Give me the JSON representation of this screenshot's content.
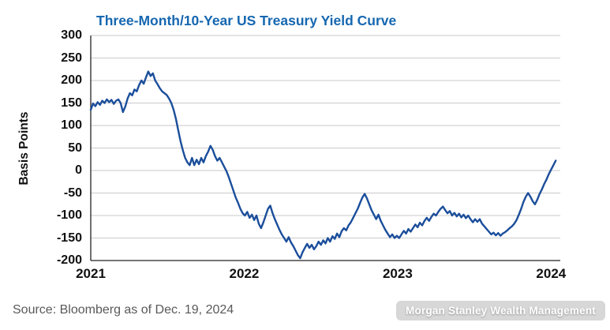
{
  "chart_data": {
    "type": "line",
    "title": "Three-Month/10-Year US Treasury Yield Curve",
    "xlabel": "",
    "ylabel": "Basis Points",
    "x_ticks": [
      2021,
      2022,
      2023,
      2024
    ],
    "y_ticks": [
      300,
      250,
      200,
      150,
      100,
      50,
      0,
      -50,
      -100,
      -150,
      -200
    ],
    "ylim": [
      -200,
      300
    ],
    "xlim": [
      2021,
      2024.06
    ],
    "grid": true,
    "legend": "none",
    "points": [
      [
        2021.0,
        135
      ],
      [
        2021.015,
        149
      ],
      [
        2021.03,
        143
      ],
      [
        2021.045,
        152
      ],
      [
        2021.06,
        146
      ],
      [
        2021.075,
        155
      ],
      [
        2021.09,
        150
      ],
      [
        2021.105,
        158
      ],
      [
        2021.12,
        152
      ],
      [
        2021.135,
        157
      ],
      [
        2021.15,
        148
      ],
      [
        2021.165,
        155
      ],
      [
        2021.18,
        158
      ],
      [
        2021.195,
        150
      ],
      [
        2021.21,
        130
      ],
      [
        2021.225,
        142
      ],
      [
        2021.24,
        160
      ],
      [
        2021.255,
        172
      ],
      [
        2021.27,
        167
      ],
      [
        2021.285,
        180
      ],
      [
        2021.3,
        176
      ],
      [
        2021.315,
        190
      ],
      [
        2021.33,
        200
      ],
      [
        2021.345,
        193
      ],
      [
        2021.36,
        207
      ],
      [
        2021.375,
        220
      ],
      [
        2021.39,
        210
      ],
      [
        2021.405,
        216
      ],
      [
        2021.42,
        200
      ],
      [
        2021.435,
        192
      ],
      [
        2021.45,
        183
      ],
      [
        2021.465,
        176
      ],
      [
        2021.48,
        172
      ],
      [
        2021.495,
        168
      ],
      [
        2021.51,
        160
      ],
      [
        2021.525,
        150
      ],
      [
        2021.54,
        135
      ],
      [
        2021.555,
        115
      ],
      [
        2021.57,
        90
      ],
      [
        2021.585,
        65
      ],
      [
        2021.6,
        45
      ],
      [
        2021.615,
        28
      ],
      [
        2021.63,
        18
      ],
      [
        2021.645,
        12
      ],
      [
        2021.66,
        28
      ],
      [
        2021.675,
        12
      ],
      [
        2021.69,
        24
      ],
      [
        2021.705,
        14
      ],
      [
        2021.72,
        28
      ],
      [
        2021.735,
        18
      ],
      [
        2021.75,
        32
      ],
      [
        2021.765,
        42
      ],
      [
        2021.78,
        55
      ],
      [
        2021.795,
        46
      ],
      [
        2021.81,
        32
      ],
      [
        2021.825,
        22
      ],
      [
        2021.84,
        28
      ],
      [
        2021.855,
        18
      ],
      [
        2021.87,
        8
      ],
      [
        2021.885,
        -2
      ],
      [
        2021.9,
        -15
      ],
      [
        2021.915,
        -30
      ],
      [
        2021.93,
        -45
      ],
      [
        2021.945,
        -60
      ],
      [
        2021.96,
        -72
      ],
      [
        2021.975,
        -85
      ],
      [
        2021.99,
        -95
      ],
      [
        2022.005,
        -100
      ],
      [
        2022.02,
        -92
      ],
      [
        2022.035,
        -105
      ],
      [
        2022.05,
        -98
      ],
      [
        2022.065,
        -110
      ],
      [
        2022.08,
        -100
      ],
      [
        2022.095,
        -118
      ],
      [
        2022.11,
        -128
      ],
      [
        2022.125,
        -115
      ],
      [
        2022.14,
        -100
      ],
      [
        2022.155,
        -85
      ],
      [
        2022.17,
        -78
      ],
      [
        2022.185,
        -95
      ],
      [
        2022.2,
        -108
      ],
      [
        2022.215,
        -120
      ],
      [
        2022.23,
        -132
      ],
      [
        2022.245,
        -142
      ],
      [
        2022.26,
        -150
      ],
      [
        2022.275,
        -158
      ],
      [
        2022.29,
        -148
      ],
      [
        2022.305,
        -160
      ],
      [
        2022.32,
        -168
      ],
      [
        2022.335,
        -178
      ],
      [
        2022.35,
        -188
      ],
      [
        2022.365,
        -195
      ],
      [
        2022.38,
        -182
      ],
      [
        2022.395,
        -172
      ],
      [
        2022.41,
        -163
      ],
      [
        2022.425,
        -172
      ],
      [
        2022.44,
        -165
      ],
      [
        2022.455,
        -175
      ],
      [
        2022.47,
        -168
      ],
      [
        2022.485,
        -158
      ],
      [
        2022.5,
        -165
      ],
      [
        2022.515,
        -155
      ],
      [
        2022.53,
        -162
      ],
      [
        2022.545,
        -150
      ],
      [
        2022.56,
        -158
      ],
      [
        2022.575,
        -146
      ],
      [
        2022.59,
        -152
      ],
      [
        2022.605,
        -140
      ],
      [
        2022.62,
        -148
      ],
      [
        2022.635,
        -135
      ],
      [
        2022.65,
        -128
      ],
      [
        2022.665,
        -133
      ],
      [
        2022.68,
        -122
      ],
      [
        2022.695,
        -115
      ],
      [
        2022.71,
        -105
      ],
      [
        2022.725,
        -95
      ],
      [
        2022.74,
        -85
      ],
      [
        2022.755,
        -72
      ],
      [
        2022.77,
        -60
      ],
      [
        2022.785,
        -52
      ],
      [
        2022.8,
        -62
      ],
      [
        2022.815,
        -75
      ],
      [
        2022.83,
        -88
      ],
      [
        2022.845,
        -98
      ],
      [
        2022.86,
        -108
      ],
      [
        2022.875,
        -98
      ],
      [
        2022.89,
        -112
      ],
      [
        2022.905,
        -122
      ],
      [
        2022.92,
        -132
      ],
      [
        2022.935,
        -140
      ],
      [
        2022.95,
        -148
      ],
      [
        2022.965,
        -142
      ],
      [
        2022.98,
        -150
      ],
      [
        2022.995,
        -145
      ],
      [
        2023.01,
        -150
      ],
      [
        2023.025,
        -142
      ],
      [
        2023.04,
        -134
      ],
      [
        2023.055,
        -140
      ],
      [
        2023.07,
        -130
      ],
      [
        2023.085,
        -136
      ],
      [
        2023.1,
        -128
      ],
      [
        2023.115,
        -120
      ],
      [
        2023.13,
        -126
      ],
      [
        2023.145,
        -116
      ],
      [
        2023.16,
        -122
      ],
      [
        2023.175,
        -112
      ],
      [
        2023.19,
        -105
      ],
      [
        2023.205,
        -112
      ],
      [
        2023.22,
        -103
      ],
      [
        2023.235,
        -96
      ],
      [
        2023.25,
        -100
      ],
      [
        2023.265,
        -92
      ],
      [
        2023.28,
        -85
      ],
      [
        2023.295,
        -80
      ],
      [
        2023.31,
        -88
      ],
      [
        2023.325,
        -95
      ],
      [
        2023.34,
        -90
      ],
      [
        2023.355,
        -100
      ],
      [
        2023.37,
        -94
      ],
      [
        2023.385,
        -102
      ],
      [
        2023.4,
        -96
      ],
      [
        2023.415,
        -104
      ],
      [
        2023.43,
        -98
      ],
      [
        2023.445,
        -106
      ],
      [
        2023.46,
        -100
      ],
      [
        2023.475,
        -108
      ],
      [
        2023.49,
        -115
      ],
      [
        2023.505,
        -108
      ],
      [
        2023.52,
        -114
      ],
      [
        2023.535,
        -108
      ],
      [
        2023.55,
        -118
      ],
      [
        2023.565,
        -124
      ],
      [
        2023.58,
        -130
      ],
      [
        2023.595,
        -136
      ],
      [
        2023.61,
        -142
      ],
      [
        2023.625,
        -138
      ],
      [
        2023.64,
        -144
      ],
      [
        2023.655,
        -139
      ],
      [
        2023.67,
        -145
      ],
      [
        2023.685,
        -140
      ],
      [
        2023.7,
        -137
      ],
      [
        2023.715,
        -133
      ],
      [
        2023.73,
        -128
      ],
      [
        2023.745,
        -124
      ],
      [
        2023.76,
        -118
      ],
      [
        2023.775,
        -110
      ],
      [
        2023.79,
        -98
      ],
      [
        2023.805,
        -85
      ],
      [
        2023.82,
        -70
      ],
      [
        2023.835,
        -58
      ],
      [
        2023.85,
        -50
      ],
      [
        2023.865,
        -58
      ],
      [
        2023.88,
        -68
      ],
      [
        2023.895,
        -75
      ],
      [
        2023.91,
        -65
      ],
      [
        2023.925,
        -52
      ],
      [
        2023.94,
        -42
      ],
      [
        2023.955,
        -30
      ],
      [
        2023.97,
        -20
      ],
      [
        2023.985,
        -8
      ],
      [
        2024.0,
        2
      ],
      [
        2024.015,
        12
      ],
      [
        2024.03,
        22
      ]
    ]
  },
  "footer": {
    "source": "Source: Bloomberg as of Dec. 19, 2024",
    "watermark": "Morgan Stanley Wealth Management"
  },
  "colors": {
    "title": "#1567b0",
    "line": "#1b4e9b",
    "grid": "#c9c9c9",
    "axis": "#222222",
    "tick_text": "#111111",
    "source_text": "#595959"
  }
}
